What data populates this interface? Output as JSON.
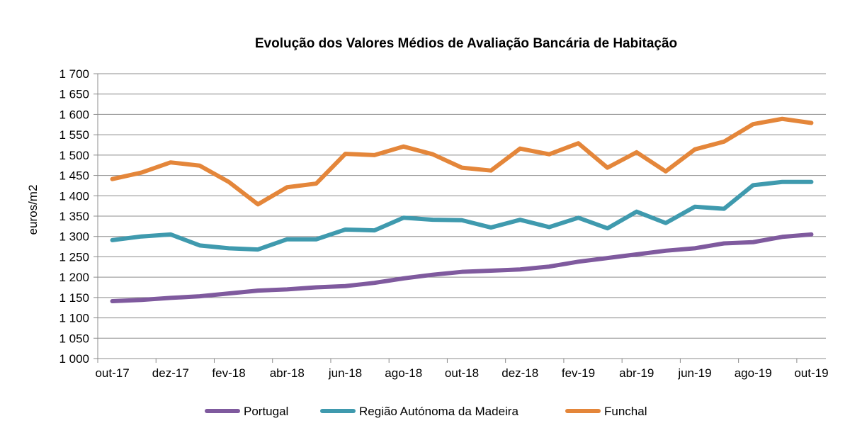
{
  "chart_data": {
    "type": "line",
    "title": "Evolução dos Valores Médios de Avaliação Bancária de Habitação",
    "xlabel": "",
    "ylabel": "euros/m2",
    "ylim": [
      1000,
      1700
    ],
    "ytick_labels": [
      "1 000",
      "1 050",
      "1 100",
      "1 150",
      "1 200",
      "1 250",
      "1 300",
      "1 350",
      "1 400",
      "1 450",
      "1 500",
      "1 550",
      "1 600",
      "1 650",
      "1 700"
    ],
    "x": [
      "out-17",
      "nov-17",
      "dez-17",
      "jan-18",
      "fev-18",
      "mar-18",
      "abr-18",
      "mai-18",
      "jun-18",
      "jul-18",
      "ago-18",
      "set-18",
      "out-18",
      "nov-18",
      "dez-18",
      "jan-19",
      "fev-19",
      "mar-19",
      "abr-19",
      "mai-19",
      "jun-19",
      "jul-19",
      "ago-19",
      "set-19",
      "out-19"
    ],
    "xtick_labels": [
      "out-17",
      "dez-17",
      "fev-18",
      "abr-18",
      "jun-18",
      "ago-18",
      "out-18",
      "dez-18",
      "fev-19",
      "abr-19",
      "jun-19",
      "ago-19",
      "out-19"
    ],
    "grid": true,
    "legend_position": "bottom",
    "series": [
      {
        "name": "Portugal",
        "color": "#7F5A9E",
        "values": [
          1141,
          1144,
          1149,
          1153,
          1160,
          1167,
          1170,
          1175,
          1178,
          1186,
          1197,
          1206,
          1213,
          1216,
          1219,
          1226,
          1238,
          1247,
          1256,
          1265,
          1271,
          1283,
          1286,
          1299,
          1305
        ]
      },
      {
        "name": "Região Autónoma da Madeira",
        "color": "#3F9AAE",
        "values": [
          1291,
          1300,
          1305,
          1278,
          1271,
          1268,
          1293,
          1293,
          1317,
          1315,
          1346,
          1341,
          1340,
          1322,
          1341,
          1323,
          1346,
          1320,
          1361,
          1333,
          1373,
          1368,
          1426,
          1434,
          1434
        ]
      },
      {
        "name": "Funchal",
        "color": "#E4863A",
        "values": [
          1441,
          1457,
          1482,
          1474,
          1434,
          1379,
          1421,
          1430,
          1503,
          1500,
          1521,
          1502,
          1469,
          1462,
          1516,
          1502,
          1529,
          1469,
          1507,
          1460,
          1514,
          1533,
          1576,
          1589,
          1579
        ]
      }
    ]
  }
}
